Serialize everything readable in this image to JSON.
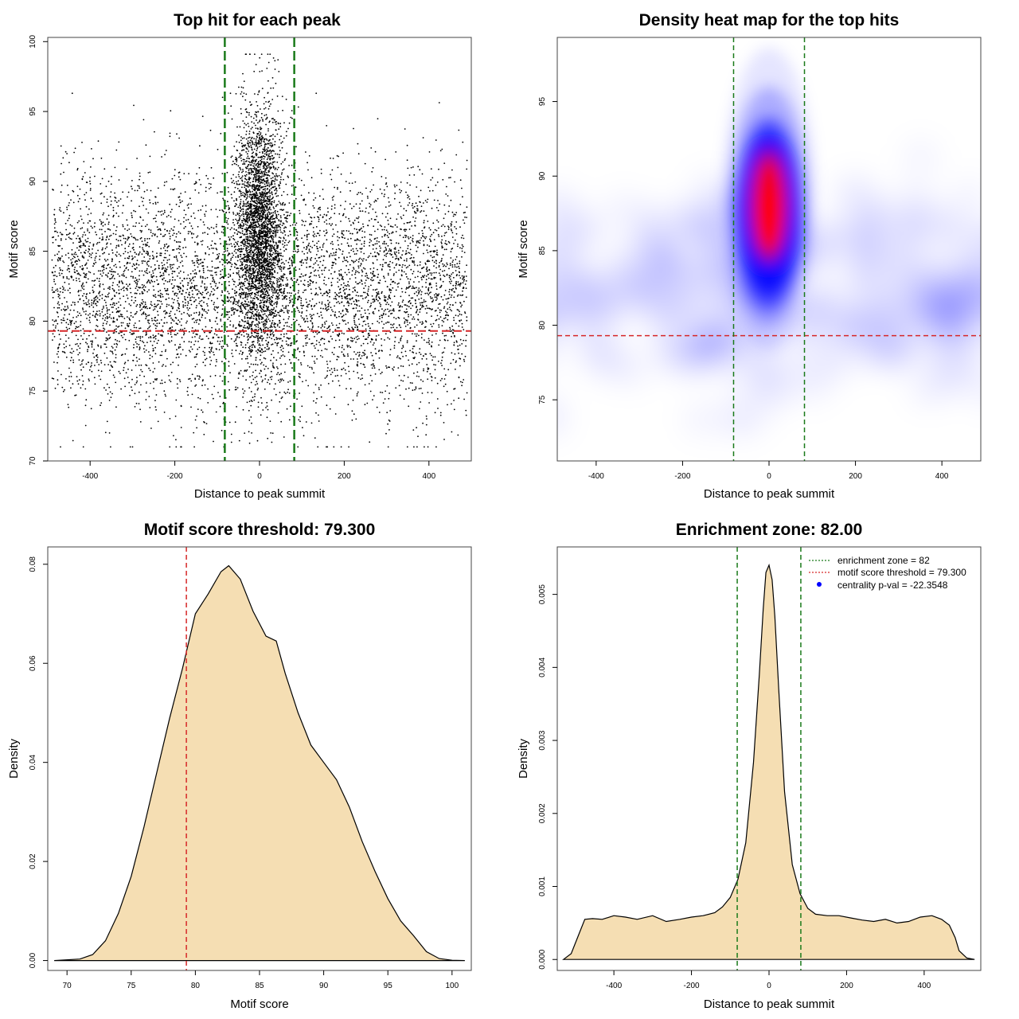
{
  "colors": {
    "threshold": "#d62728",
    "zone": "#1a7a1a",
    "fill": "#f5deb3",
    "point": "#000000",
    "heat_low": "#ffffff",
    "heat_mid": "#0000ff",
    "heat_high": "#ff0000"
  },
  "chart_data": [
    {
      "type": "scatter",
      "title": "Top hit for each peak",
      "xlabel": "Distance to peak summit",
      "ylabel": "Motif score",
      "xlim": [
        -500,
        500
      ],
      "ylim": [
        70,
        100.3
      ],
      "xticks": [
        -400,
        -200,
        0,
        200,
        400
      ],
      "yticks": [
        70,
        75,
        80,
        85,
        90,
        95,
        100
      ],
      "threshold": 79.3,
      "zone": [
        -82,
        82
      ],
      "points_description": "approx. 10000 peaks; uniform background across -490..490 with scores ~71-95 centred near 82, plus a dense central cluster within ±80 bp reaching ~99"
    },
    {
      "type": "heatmap",
      "title": "Density heat map for the top hits",
      "xlabel": "Distance to peak summit",
      "ylabel": "Motif score",
      "xlim": [
        -490,
        490
      ],
      "ylim": [
        70.9,
        99.3
      ],
      "xticks": [
        -400,
        -200,
        0,
        200,
        400
      ],
      "yticks": [
        75,
        80,
        85,
        90,
        95
      ],
      "threshold": 79.3,
      "zone": [
        -82,
        82
      ],
      "peak": {
        "x": 0,
        "y": 88
      }
    },
    {
      "type": "area",
      "title": "Motif score threshold: 79.300",
      "xlabel": "Motif score",
      "ylabel": "Density",
      "xlim": [
        68.5,
        101.5
      ],
      "ylim": [
        -0.002,
        0.0835
      ],
      "xticks": [
        70,
        75,
        80,
        85,
        90,
        95,
        100
      ],
      "yticks": [
        0.0,
        0.02,
        0.04,
        0.06,
        0.08
      ],
      "ytick_labels": [
        "0.00",
        "0.02",
        "0.04",
        "0.06",
        "0.08"
      ],
      "threshold": 79.3,
      "x": [
        69,
        71,
        72,
        73,
        74,
        75,
        76,
        77,
        78,
        79,
        80,
        81,
        82,
        82.6,
        83.5,
        84.5,
        85.5,
        86.3,
        87,
        88,
        89,
        90,
        91,
        92,
        93,
        94,
        95,
        96,
        97,
        98,
        99,
        100,
        101
      ],
      "y": [
        0,
        0.0003,
        0.0012,
        0.004,
        0.0095,
        0.017,
        0.027,
        0.038,
        0.049,
        0.059,
        0.07,
        0.074,
        0.0785,
        0.0797,
        0.077,
        0.0705,
        0.0655,
        0.0645,
        0.058,
        0.05,
        0.0435,
        0.04,
        0.0365,
        0.031,
        0.024,
        0.018,
        0.0125,
        0.008,
        0.005,
        0.0018,
        0.0004,
        5e-05,
        0
      ]
    },
    {
      "type": "area",
      "title": "Enrichment zone: 82.00",
      "xlabel": "Distance to peak summit",
      "ylabel": "Density",
      "xlim": [
        -546,
        546
      ],
      "ylim": [
        -0.00015,
        0.00565
      ],
      "xticks": [
        -400,
        -200,
        0,
        200,
        400
      ],
      "yticks": [
        0.0,
        0.001,
        0.002,
        0.003,
        0.004,
        0.005
      ],
      "ytick_labels": [
        "0.000",
        "0.001",
        "0.002",
        "0.003",
        "0.004",
        "0.005"
      ],
      "zone": [
        -82,
        82
      ],
      "x": [
        -530,
        -510,
        -490,
        -475,
        -455,
        -430,
        -400,
        -370,
        -340,
        -300,
        -265,
        -230,
        -200,
        -170,
        -140,
        -120,
        -100,
        -80,
        -60,
        -40,
        -25,
        -15,
        -8,
        0,
        8,
        15,
        25,
        40,
        60,
        80,
        100,
        120,
        150,
        180,
        210,
        240,
        270,
        300,
        330,
        360,
        390,
        420,
        445,
        465,
        480,
        490,
        510,
        530
      ],
      "y": [
        0,
        8e-05,
        0.00035,
        0.00055,
        0.00056,
        0.00055,
        0.0006,
        0.00058,
        0.00055,
        0.0006,
        0.00052,
        0.00055,
        0.00058,
        0.0006,
        0.00064,
        0.00072,
        0.00085,
        0.0011,
        0.0016,
        0.0027,
        0.0039,
        0.0048,
        0.0053,
        0.0054,
        0.0052,
        0.0047,
        0.0037,
        0.0023,
        0.0013,
        0.0009,
        0.0007,
        0.00062,
        0.0006,
        0.0006,
        0.00057,
        0.00054,
        0.00052,
        0.00055,
        0.0005,
        0.00052,
        0.00058,
        0.0006,
        0.00055,
        0.00047,
        0.0003,
        0.00012,
        2e-05,
        0
      ],
      "legend": [
        {
          "label": "enrichment zone = 82",
          "style": "zone-line"
        },
        {
          "label": "motif score threshold = 79.300",
          "style": "threshold-line"
        },
        {
          "label": "centrality p-val = -22.3548",
          "style": "blue-dot"
        }
      ],
      "legend_position": "top-right"
    }
  ]
}
